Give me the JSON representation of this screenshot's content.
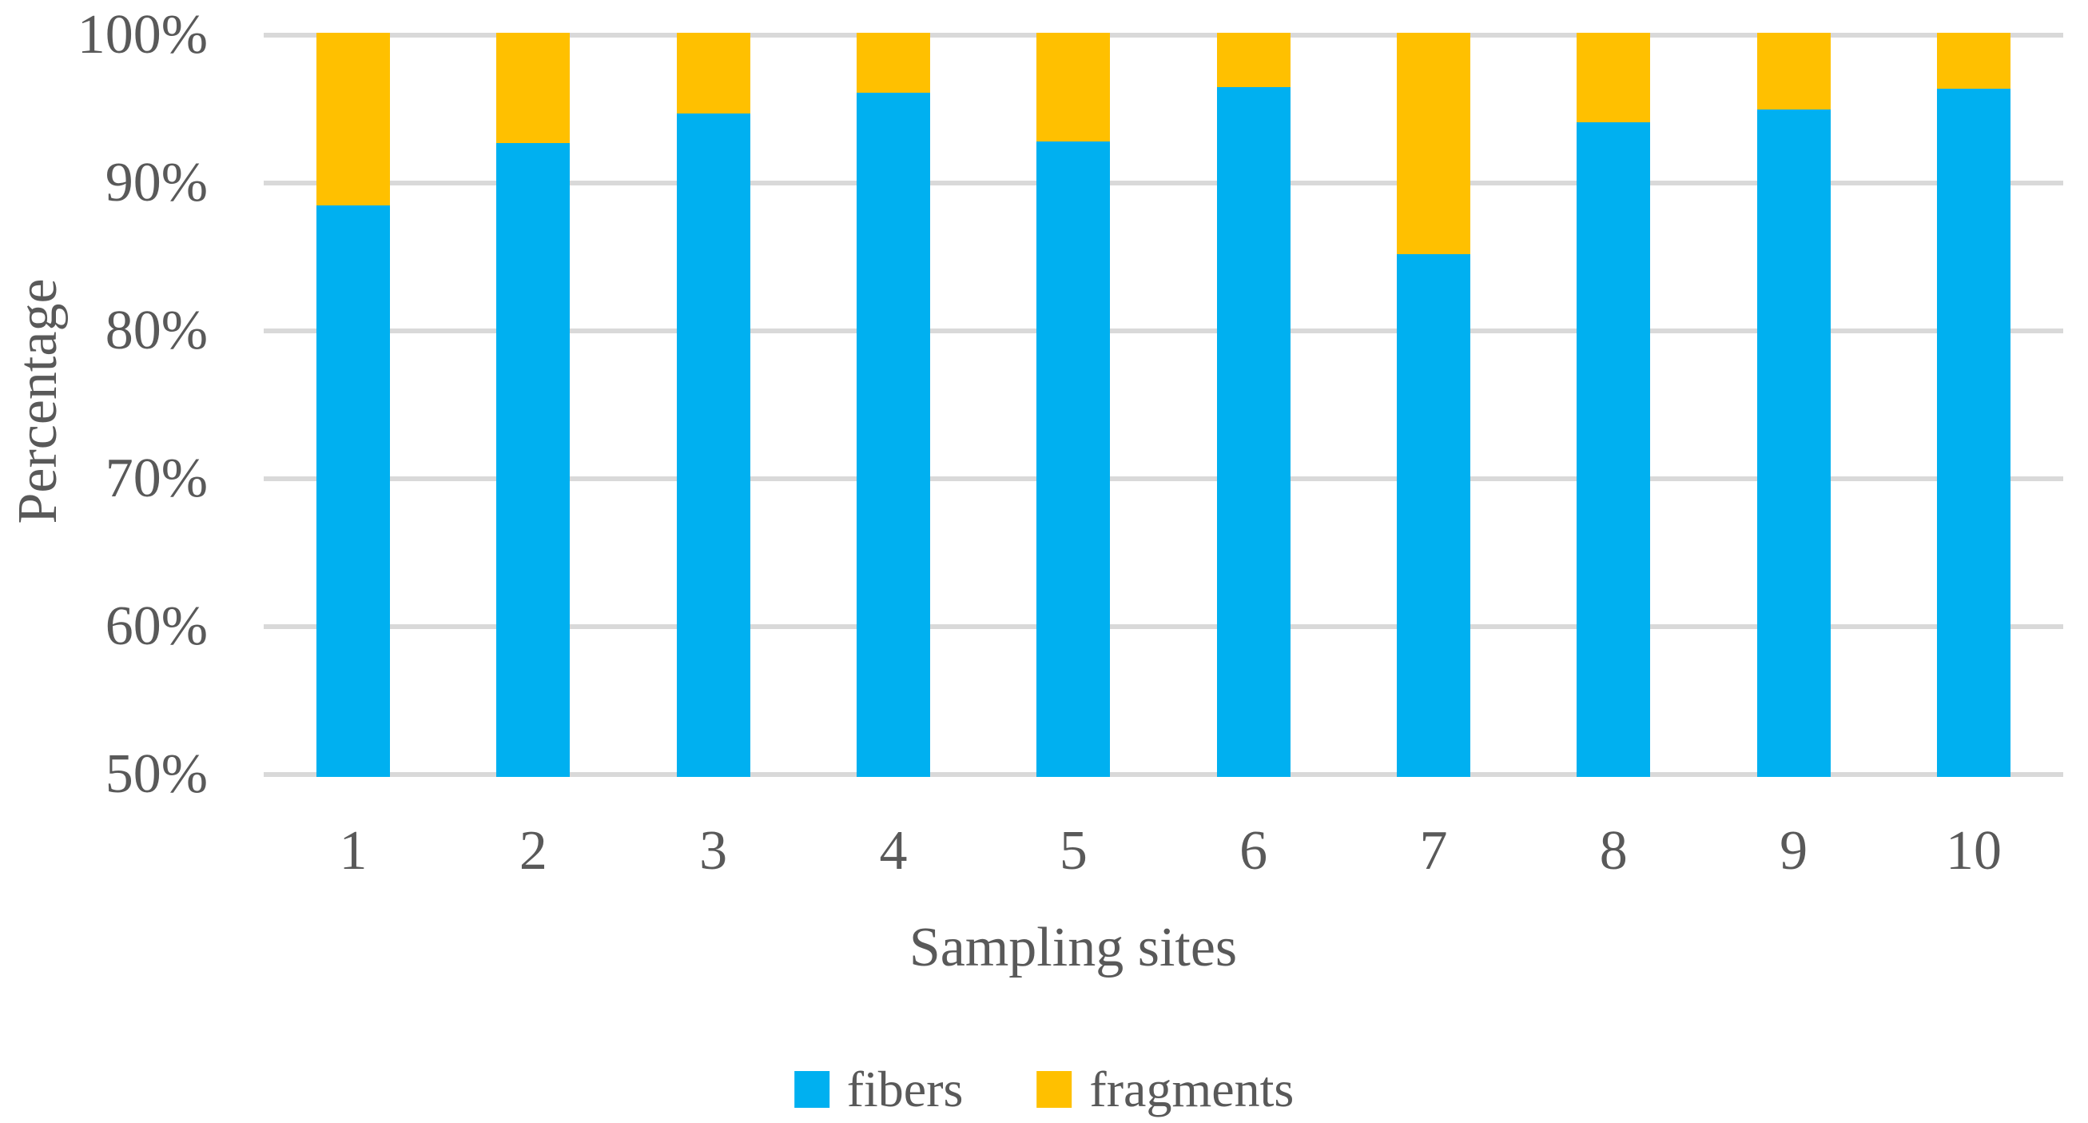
{
  "chart_data": {
    "type": "bar",
    "stacked": true,
    "stack_total": 100,
    "categories": [
      "1",
      "2",
      "3",
      "4",
      "5",
      "6",
      "7",
      "8",
      "9",
      "10"
    ],
    "series": [
      {
        "name": "fibers",
        "color": "#00B0F0",
        "values": [
          88.5,
          92.7,
          94.7,
          96.1,
          92.8,
          96.5,
          85.2,
          94.1,
          95.0,
          96.4
        ]
      },
      {
        "name": "fragments",
        "color": "#FFC000",
        "values": [
          11.5,
          7.3,
          5.3,
          3.9,
          7.2,
          3.5,
          14.8,
          5.9,
          5.0,
          3.6
        ]
      }
    ],
    "xlabel": "Sampling sites",
    "ylabel": "Percentage",
    "ylim": [
      50,
      100
    ],
    "yticks": [
      {
        "value": 50,
        "label": "50%"
      },
      {
        "value": 60,
        "label": "60%"
      },
      {
        "value": 70,
        "label": "70%"
      },
      {
        "value": 80,
        "label": "80%"
      },
      {
        "value": 90,
        "label": "90%"
      },
      {
        "value": 100,
        "label": "100%"
      }
    ],
    "grid": "horizontal",
    "legend_position": "bottom"
  },
  "colors": {
    "background": "#FFFFFF",
    "text": "#595959",
    "gridline": "#D9D9D9",
    "fibers": "#00B0F0",
    "fragments": "#FFC000"
  }
}
